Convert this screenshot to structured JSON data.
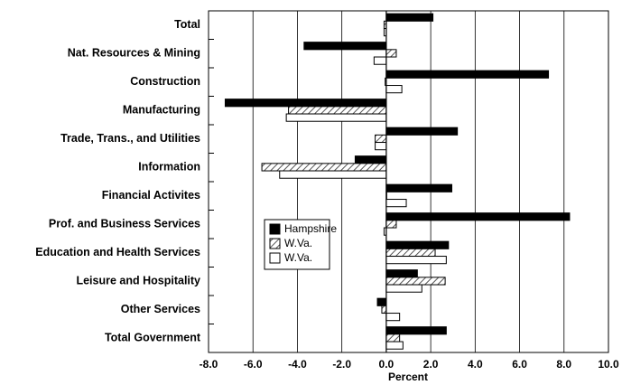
{
  "chart_data": {
    "type": "hbar",
    "categories": [
      "Total",
      "Nat. Resources & Mining",
      "Construction",
      "Manufacturing",
      "Trade, Trans., and Utilities",
      "Information",
      "Financial Activites",
      "Prof. and Business Services",
      "Education and Health Services",
      "Leisure and Hospitality",
      "Other Services",
      "Total Government"
    ],
    "series": [
      {
        "name": "Hampshire",
        "color": "#000000",
        "values": [
          2.1,
          -3.7,
          7.3,
          -7.25,
          3.2,
          -1.4,
          2.95,
          8.25,
          2.8,
          1.4,
          -0.4,
          2.7
        ]
      },
      {
        "name": "W.Va.",
        "color": "hatch",
        "values": [
          -0.1,
          0.45,
          -0.05,
          -4.4,
          -0.5,
          -5.6,
          0.0,
          0.45,
          2.2,
          2.65,
          -0.2,
          0.6
        ]
      },
      {
        "name": "W.Va.",
        "color": "#ffffff",
        "values": [
          -0.1,
          -0.55,
          0.7,
          -4.5,
          -0.5,
          -4.8,
          0.9,
          -0.1,
          2.7,
          1.6,
          0.6,
          0.75
        ]
      }
    ],
    "xlabel": "Percent",
    "xlim": [
      -8,
      10
    ],
    "xticks": [
      {
        "value": -8,
        "label": "-8.0"
      },
      {
        "value": -6,
        "label": "-6.0"
      },
      {
        "value": -4,
        "label": "-4.0"
      },
      {
        "value": -2,
        "label": "-2.0"
      },
      {
        "value": 0,
        "label": "0.0"
      },
      {
        "value": 2,
        "label": "2.0"
      },
      {
        "value": 4,
        "label": "4.0"
      },
      {
        "value": 6,
        "label": "6.0"
      },
      {
        "value": 8,
        "label": "8.0"
      },
      {
        "value": 10,
        "label": "10.0"
      }
    ],
    "grid": true,
    "legend": "center-left"
  }
}
